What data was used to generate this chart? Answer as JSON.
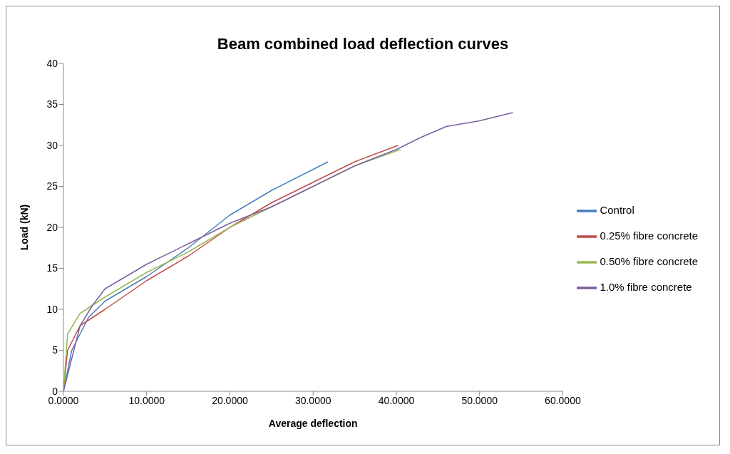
{
  "chart_data": {
    "type": "line",
    "title": "Beam combined load deflection curves",
    "xlabel": "Average deflection",
    "ylabel": "Load (kN)",
    "xlim": [
      0,
      60
    ],
    "xticks": [
      {
        "value": 0,
        "label": "0.0000"
      },
      {
        "value": 10,
        "label": "10.0000"
      },
      {
        "value": 20,
        "label": "20.0000"
      },
      {
        "value": 30,
        "label": "30.0000"
      },
      {
        "value": 40,
        "label": "40.0000"
      },
      {
        "value": 50,
        "label": "50.0000"
      },
      {
        "value": 60,
        "label": "60.0000"
      }
    ],
    "ylim": [
      0,
      40
    ],
    "yticks": [
      0,
      5,
      10,
      15,
      20,
      25,
      30,
      35,
      40
    ],
    "grid": false,
    "legend": "right",
    "marker": "none",
    "line_style": "solid",
    "series": [
      {
        "name": "Control",
        "color": "#4a7ebb",
        "x": [
          0,
          1,
          3,
          5,
          10,
          15,
          20,
          25,
          31.8
        ],
        "values": [
          0,
          5,
          9,
          11,
          14,
          17.5,
          21.5,
          24.5,
          28
        ]
      },
      {
        "name": "0.25% fibre concrete",
        "color": "#be4b48",
        "x": [
          0,
          0.5,
          2,
          5,
          10,
          15,
          20,
          25,
          30,
          35,
          40.2
        ],
        "values": [
          0,
          5,
          8,
          10,
          13.5,
          16.5,
          20,
          23,
          25.5,
          28,
          30
        ]
      },
      {
        "name": "0.50% fibre concrete",
        "color": "#98b954",
        "x": [
          0,
          0.5,
          2,
          5,
          10,
          15,
          20,
          25,
          30,
          35,
          40.5
        ],
        "values": [
          0,
          7,
          9.5,
          11.5,
          14.5,
          17,
          20,
          22.5,
          25,
          27.5,
          29.5
        ]
      },
      {
        "name": "1.0% fibre concrete",
        "color": "#7d60a0",
        "x": [
          0,
          1,
          2,
          3.5,
          5,
          10,
          15,
          20,
          25,
          30,
          35,
          40,
          43,
          46,
          50,
          54
        ],
        "values": [
          0,
          4,
          8,
          10.5,
          12.5,
          15.5,
          18,
          20.5,
          22.5,
          25,
          27.5,
          29.5,
          31,
          32.3,
          33,
          34
        ]
      }
    ]
  }
}
